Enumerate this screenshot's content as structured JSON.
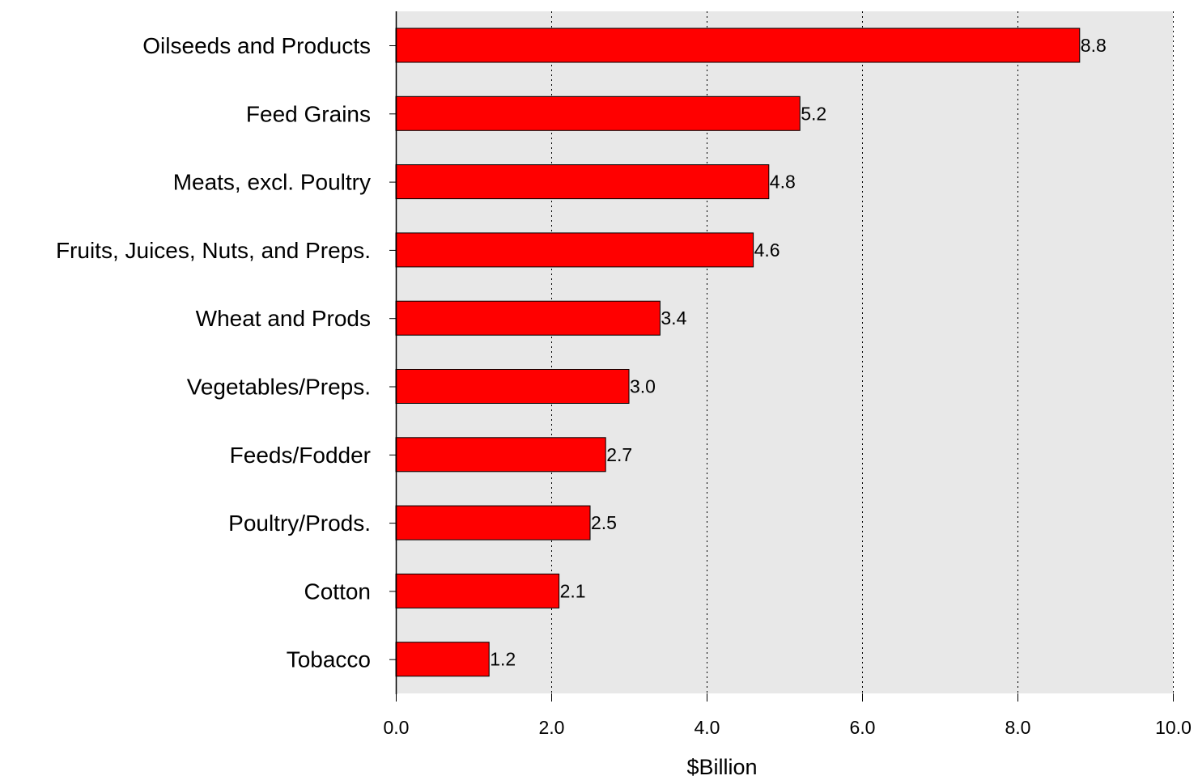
{
  "chart_data": {
    "type": "bar",
    "orientation": "horizontal",
    "categories": [
      "Oilseeds and Products",
      "Feed Grains",
      "Meats, excl. Poultry",
      "Fruits, Juices, Nuts, and Preps.",
      "Wheat and Prods",
      "Vegetables/Preps.",
      "Feeds/Fodder",
      "Poultry/Prods.",
      "Cotton",
      "Tobacco"
    ],
    "values": [
      8.8,
      5.2,
      4.8,
      4.6,
      3.4,
      3.0,
      2.7,
      2.5,
      2.1,
      1.2
    ],
    "value_labels": [
      "8.8",
      "5.2",
      "4.8",
      "4.6",
      "3.4",
      "3.0",
      "2.7",
      "2.5",
      "2.1",
      "1.2"
    ],
    "xlabel": "$Billion",
    "ylabel": "",
    "xlim": [
      0,
      10
    ],
    "xticks": [
      0,
      2,
      4,
      6,
      8,
      10
    ],
    "xtick_labels": [
      "0.0",
      "2.0",
      "4.0",
      "6.0",
      "8.0",
      "10.0"
    ],
    "grid": "vertical dotted",
    "colors": {
      "bar": "#ff0000",
      "bar_border": "#000000",
      "plot_background": "#e8e8e8"
    }
  }
}
